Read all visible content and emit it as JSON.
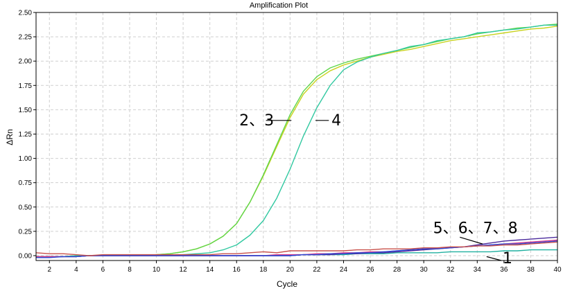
{
  "chart_data": {
    "type": "line",
    "title": "Amplification Plot",
    "xlabel": "Cycle",
    "ylabel": "ΔRn",
    "xlim": [
      1,
      40
    ],
    "ylim": [
      -0.05,
      2.5
    ],
    "x_ticks": [
      2,
      4,
      6,
      8,
      10,
      12,
      14,
      16,
      18,
      20,
      22,
      24,
      26,
      28,
      30,
      32,
      34,
      36,
      38,
      40
    ],
    "y_ticks": [
      0.0,
      0.25,
      0.5,
      0.75,
      1.0,
      1.25,
      1.5,
      1.75,
      2.0,
      2.25,
      2.5
    ],
    "y_tick_labels": [
      "0.00",
      "0.25",
      "0.50",
      "0.75",
      "1.00",
      "1.25",
      "1.50",
      "1.75",
      "2.00",
      "2.25",
      "2.50"
    ],
    "grid": true,
    "x": [
      1,
      2,
      3,
      4,
      5,
      6,
      7,
      8,
      9,
      10,
      11,
      12,
      13,
      14,
      15,
      16,
      17,
      18,
      19,
      20,
      21,
      22,
      23,
      24,
      25,
      26,
      27,
      28,
      29,
      30,
      31,
      32,
      33,
      34,
      35,
      36,
      37,
      38,
      39,
      40
    ],
    "series": [
      {
        "color": "#c8d21e",
        "values": [
          -0.01,
          -0.01,
          -0.01,
          0,
          0,
          0,
          0,
          0,
          0,
          0.01,
          0.02,
          0.04,
          0.07,
          0.12,
          0.2,
          0.33,
          0.55,
          0.82,
          1.12,
          1.42,
          1.66,
          1.81,
          1.9,
          1.96,
          2.0,
          2.04,
          2.07,
          2.1,
          2.12,
          2.15,
          2.18,
          2.21,
          2.23,
          2.25,
          2.27,
          2.29,
          2.31,
          2.33,
          2.34,
          2.36
        ]
      },
      {
        "color": "#5ed64a",
        "values": [
          -0.01,
          -0.01,
          -0.01,
          0,
          0,
          0,
          0,
          0,
          0,
          0.01,
          0.02,
          0.04,
          0.07,
          0.12,
          0.2,
          0.33,
          0.55,
          0.83,
          1.14,
          1.45,
          1.69,
          1.84,
          1.93,
          1.98,
          2.02,
          2.05,
          2.08,
          2.11,
          2.14,
          2.17,
          2.2,
          2.23,
          2.25,
          2.28,
          2.3,
          2.32,
          2.34,
          2.35,
          2.37,
          2.38
        ]
      },
      {
        "color": "#30c8a0",
        "values": [
          -0.01,
          -0.01,
          -0.01,
          0,
          0,
          0,
          0,
          0,
          0,
          0,
          0,
          0.01,
          0.02,
          0.03,
          0.06,
          0.11,
          0.21,
          0.36,
          0.59,
          0.89,
          1.23,
          1.52,
          1.75,
          1.91,
          1.99,
          2.04,
          2.08,
          2.11,
          2.15,
          2.17,
          2.21,
          2.23,
          2.25,
          2.29,
          2.3,
          2.32,
          2.33,
          2.35,
          2.37,
          2.37
        ]
      },
      {
        "color": "#20b0a0",
        "values": [
          -0.01,
          -0.01,
          -0.01,
          -0.01,
          0,
          0,
          0,
          0,
          0,
          0,
          0,
          0,
          0,
          0,
          0,
          0,
          0,
          0,
          0,
          0,
          0.01,
          0.01,
          0.01,
          0.01,
          0.02,
          0.02,
          0.02,
          0.03,
          0.03,
          0.03,
          0.03,
          0.04,
          0.04,
          0.04,
          0.04,
          0.05,
          0.05,
          0.06,
          0.06,
          0.06
        ]
      },
      {
        "color": "#4a2a9c",
        "values": [
          -0.01,
          -0.01,
          -0.01,
          -0.01,
          0,
          0,
          0,
          0,
          0,
          0,
          0,
          0,
          0,
          0,
          0,
          0,
          0,
          0,
          0,
          0,
          0.01,
          0.01,
          0.01,
          0.02,
          0.02,
          0.03,
          0.03,
          0.04,
          0.05,
          0.06,
          0.07,
          0.08,
          0.09,
          0.11,
          0.13,
          0.15,
          0.16,
          0.17,
          0.18,
          0.19
        ]
      },
      {
        "color": "#d83a8a",
        "values": [
          -0.01,
          -0.01,
          -0.01,
          -0.01,
          0,
          0,
          0,
          0,
          0,
          0,
          0,
          0,
          0,
          0,
          0,
          0,
          0,
          0,
          0.01,
          0.01,
          0.01,
          0.02,
          0.02,
          0.03,
          0.03,
          0.04,
          0.04,
          0.05,
          0.06,
          0.07,
          0.08,
          0.08,
          0.09,
          0.1,
          0.11,
          0.12,
          0.13,
          0.14,
          0.15,
          0.16
        ]
      },
      {
        "color": "#2a4ad8",
        "values": [
          -0.02,
          -0.02,
          -0.01,
          -0.01,
          0,
          0,
          0,
          0,
          0,
          0,
          0,
          0,
          0,
          0,
          0,
          0,
          0,
          0,
          0,
          0,
          0.01,
          0.01,
          0.02,
          0.02,
          0.03,
          0.03,
          0.04,
          0.05,
          0.06,
          0.07,
          0.07,
          0.08,
          0.09,
          0.1,
          0.11,
          0.12,
          0.12,
          0.13,
          0.14,
          0.15
        ]
      },
      {
        "color": "#c8504a",
        "values": [
          0.03,
          0.02,
          0.02,
          0.01,
          0,
          0.01,
          0.01,
          0.01,
          0.01,
          0.01,
          0.01,
          0.01,
          0.01,
          0.01,
          0.02,
          0.02,
          0.03,
          0.04,
          0.03,
          0.05,
          0.05,
          0.05,
          0.05,
          0.05,
          0.06,
          0.06,
          0.07,
          0.07,
          0.07,
          0.08,
          0.08,
          0.09,
          0.09,
          0.1,
          0.1,
          0.11,
          0.11,
          0.12,
          0.13,
          0.14
        ]
      }
    ],
    "annotations": [
      {
        "text": "2、3",
        "x": 16.2,
        "y": 1.34,
        "line_x": [
          18.2,
          20.1
        ],
        "line_y": [
          1.39,
          1.39
        ]
      },
      {
        "text": "4",
        "x": 23.1,
        "y": 1.34,
        "line_x": [
          21.9,
          22.9
        ],
        "line_y": [
          1.39,
          1.39
        ]
      },
      {
        "text": "5、6、7、8",
        "x": 30.7,
        "y": 0.23,
        "line_x": [
          32.7,
          34.4
        ],
        "line_y": [
          0.19,
          0.12
        ]
      },
      {
        "text": "1",
        "x": 35.9,
        "y": -0.08,
        "line_x": [
          34.7,
          35.8
        ],
        "line_y": [
          -0.01,
          -0.05
        ]
      }
    ]
  }
}
